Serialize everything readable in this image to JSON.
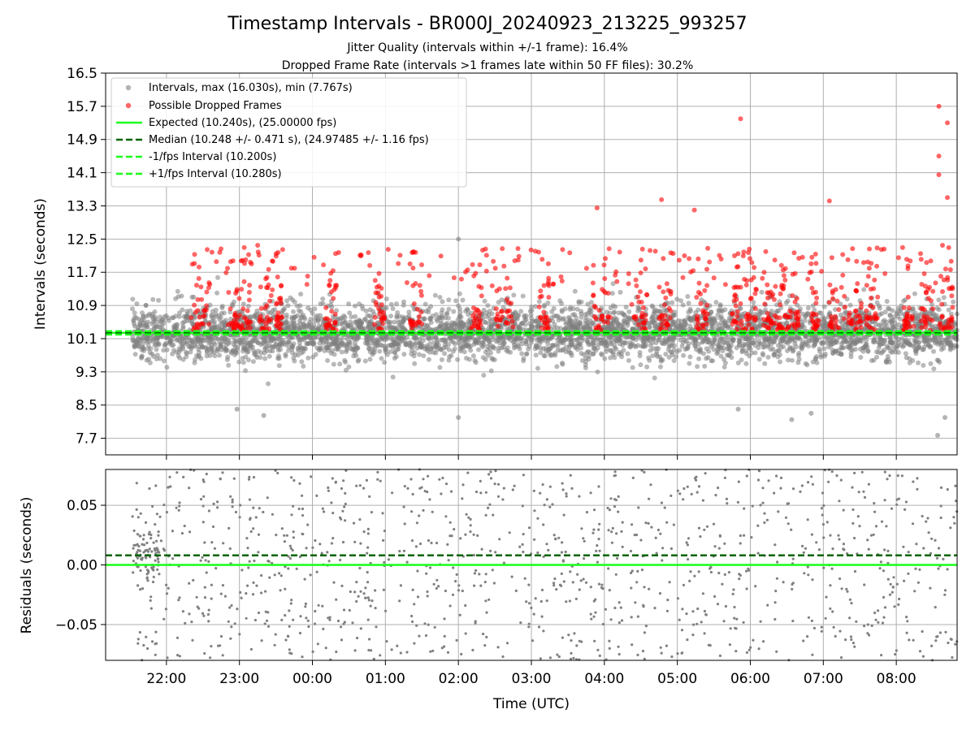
{
  "figure": {
    "title": "Timestamp Intervals - BR000J_20240923_213225_993257",
    "subtitle1": "Jitter Quality (intervals within +/-1 frame): 16.4%",
    "subtitle2": "Dropped Frame Rate (intervals >1 frames late within 50 FF files): 30.2%"
  },
  "colors": {
    "scatter": "#808080",
    "dropped": "#ff0000",
    "expected": "#1aff1a",
    "median": "#006400",
    "bounds": "#1aff1a",
    "grid": "#b0b0b0"
  },
  "chart_data": [
    {
      "type": "scatter",
      "ylabel": "Intervals (seconds)",
      "ylim": [
        7.3,
        16.5
      ],
      "yticks": [
        "7.7",
        "8.5",
        "9.3",
        "10.1",
        "10.9",
        "11.7",
        "12.5",
        "13.3",
        "14.1",
        "14.9",
        "15.7",
        "16.5"
      ],
      "x_range_utc": [
        "21:10",
        "08:50"
      ],
      "grid": true,
      "legend_position": "upper-left",
      "legend": [
        {
          "label": "Intervals, max (16.030s), min (7.767s)",
          "marker": "dot",
          "color": "#808080"
        },
        {
          "label": "Possible Dropped Frames",
          "marker": "dot",
          "color": "#ff0000"
        },
        {
          "label": "Expected (10.240s), (25.00000 fps)",
          "marker": "solid",
          "color": "#1aff1a"
        },
        {
          "label": "Median (10.248 +/- 0.471 s), (24.97485 +/- 1.16 fps)",
          "marker": "dashed",
          "color": "#006400"
        },
        {
          "label": "-1/fps Interval (10.200s)",
          "marker": "dashed",
          "color": "#1aff1a"
        },
        {
          "label": "+1/fps Interval (10.280s)",
          "marker": "dashed",
          "color": "#1aff1a"
        }
      ],
      "series": [
        {
          "name": "Intervals",
          "x_start_utc": "21:32",
          "x_end_utc": "08:50",
          "median": 10.248,
          "spread_sd": 0.471,
          "max": 16.03,
          "min": 7.767,
          "outliers": [
            [
              "22:58",
              8.4
            ],
            [
              "23:20",
              8.25
            ],
            [
              "02:00",
              8.2
            ],
            [
              "02:00",
              12.5
            ],
            [
              "05:50",
              8.4
            ],
            [
              "06:34",
              8.15
            ],
            [
              "06:50",
              8.3
            ],
            [
              "08:34",
              7.77
            ],
            [
              "08:40",
              8.2
            ]
          ]
        },
        {
          "name": "Possible Dropped Frames",
          "threshold": 10.28,
          "notable": [
            [
              "23:15",
              12.35
            ],
            [
              "03:54",
              13.25
            ],
            [
              "04:47",
              13.45
            ],
            [
              "05:14",
              13.2
            ],
            [
              "05:52",
              15.4
            ],
            [
              "07:05",
              13.42
            ],
            [
              "08:35",
              15.7
            ],
            [
              "08:35",
              14.5
            ],
            [
              "08:35",
              14.05
            ],
            [
              "08:42",
              15.3
            ],
            [
              "08:42",
              13.5
            ],
            [
              "08:38",
              12.35
            ]
          ],
          "clusters": [
            [
              "22:20",
              "22:35"
            ],
            [
              "22:50",
              "23:00"
            ],
            [
              "23:00",
              "23:10"
            ],
            [
              "23:15",
              "23:30"
            ],
            [
              "23:30",
              "23:35"
            ],
            [
              "00:10",
              "00:20"
            ],
            [
              "00:50",
              "01:00"
            ],
            [
              "01:20",
              "01:30"
            ],
            [
              "02:10",
              "02:20"
            ],
            [
              "02:30",
              "02:45"
            ],
            [
              "03:05",
              "03:15"
            ],
            [
              "03:50",
              "04:05"
            ],
            [
              "04:20",
              "04:35"
            ],
            [
              "04:45",
              "04:55"
            ],
            [
              "05:15",
              "05:25"
            ],
            [
              "05:45",
              "05:55"
            ],
            [
              "05:55",
              "06:05"
            ],
            [
              "06:10",
              "06:20"
            ],
            [
              "06:20",
              "06:30"
            ],
            [
              "06:30",
              "06:40"
            ],
            [
              "06:50",
              "06:57"
            ],
            [
              "07:05",
              "07:18"
            ],
            [
              "07:20",
              "07:32"
            ],
            [
              "07:35",
              "07:45"
            ],
            [
              "08:05",
              "08:15"
            ],
            [
              "08:20",
              "08:32"
            ],
            [
              "08:35",
              "08:48"
            ]
          ]
        }
      ],
      "reference_lines": {
        "expected": 10.24,
        "median": 10.248,
        "minus_1_fps": 10.2,
        "plus_1_fps": 10.28
      }
    },
    {
      "type": "scatter",
      "ylabel": "Residuals (seconds)",
      "xlabel": "Time (UTC)",
      "ylim": [
        -0.08,
        0.08
      ],
      "yticks": [
        "−0.05",
        "0.00",
        "0.05"
      ],
      "xticks": [
        "22:00",
        "23:00",
        "00:00",
        "01:00",
        "02:00",
        "03:00",
        "04:00",
        "05:00",
        "06:00",
        "07:00",
        "08:00"
      ],
      "grid": true,
      "series": [
        {
          "name": "Residuals",
          "x_start_utc": "21:32",
          "x_end_utc": "08:50",
          "range": [
            -0.08,
            0.08
          ]
        }
      ],
      "reference_lines": {
        "zero": 0.0,
        "median_offset": 0.008
      }
    }
  ]
}
